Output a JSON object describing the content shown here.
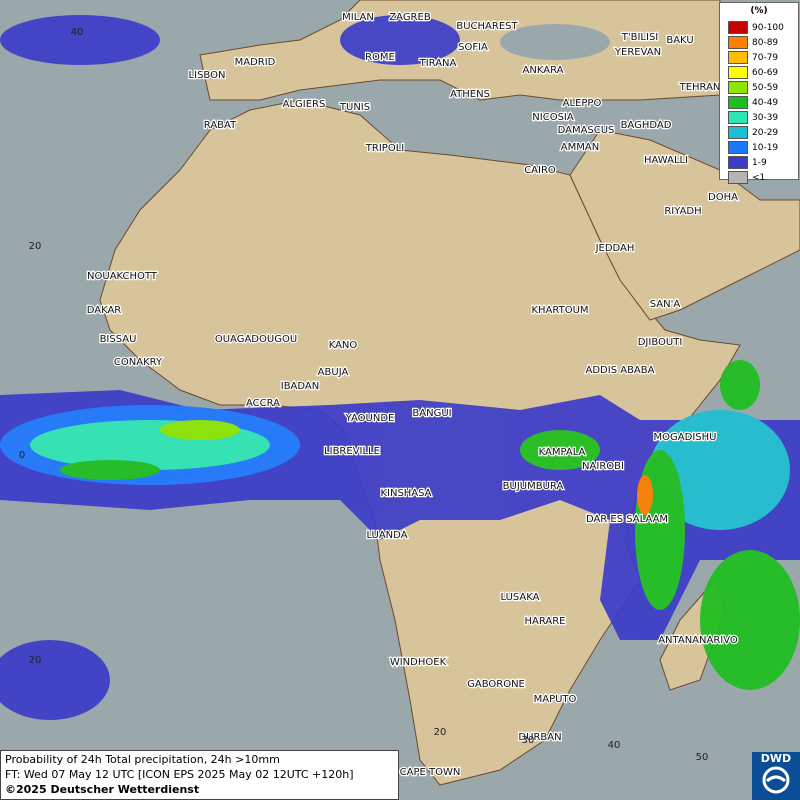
{
  "legend": {
    "title": "(%)",
    "items": [
      {
        "label": "90-100",
        "color": "#c80000"
      },
      {
        "label": "80-89",
        "color": "#ff7f00"
      },
      {
        "label": "70-79",
        "color": "#ffbf00"
      },
      {
        "label": "60-69",
        "color": "#ffff00"
      },
      {
        "label": "50-59",
        "color": "#8ce600"
      },
      {
        "label": "40-49",
        "color": "#1ebe1e"
      },
      {
        "label": "30-39",
        "color": "#2ee6b4"
      },
      {
        "label": "20-29",
        "color": "#1ebed2"
      },
      {
        "label": "10-19",
        "color": "#1e78ff"
      },
      {
        "label": "1-9",
        "color": "#3c3cc8"
      },
      {
        "label": "<1",
        "color": "#b4b4b4"
      }
    ]
  },
  "cities": [
    "MILAN",
    "ZAGREB",
    "BUCHAREST",
    "ROME",
    "SOFIA",
    "TIRANA",
    "MADRID",
    "LISBON",
    "ANKARA",
    "BAKU",
    "YEREVAN",
    "T'BILISI",
    "ATHENS",
    "ALGIERS",
    "TUNIS",
    "RABAT",
    "ALEPPO",
    "TEHRAN",
    "NICOSIA",
    "BAGHDAD",
    "DAMASCUS",
    "AMMAN",
    "TRIPOLI",
    "HAWALLI",
    "CAIRO",
    "DOHA",
    "RIYADH",
    "JEDDAH",
    "NOUAKCHOTT",
    "SAN'A",
    "DAKAR",
    "KHARTOUM",
    "BISSAU",
    "OUAGADOUGOU",
    "DJIBOUTI",
    "KANO",
    "CONAKRY",
    "ABUJA",
    "ADDIS ABABA",
    "IBADAN",
    "ACCRA",
    "YAOUNDE",
    "BANGUI",
    "MOGADISHU",
    "LIBREVILLE",
    "KAMPALA",
    "NAIROBI",
    "BUJUMBURA",
    "KINSHASA",
    "DAR ES SALAAM",
    "LUANDA",
    "LUSAKA",
    "HARARE",
    "ANTANANARIVO",
    "WINDHOEK",
    "GABORONE",
    "MAPUTO",
    "DURBAN",
    "CAPE TOWN"
  ],
  "grid_labels": [
    "40",
    "20",
    "0",
    "20",
    "20",
    "30",
    "40",
    "50"
  ],
  "caption": {
    "line1": "Probability of 24h Total precipitation, 24h >10mm",
    "line2": "FT: Wed 07 May 12 UTC [ICON EPS 2025 May 02 12UTC +120h]",
    "line3": "©2025 Deutscher Wetterdienst"
  },
  "logo": "DWD"
}
